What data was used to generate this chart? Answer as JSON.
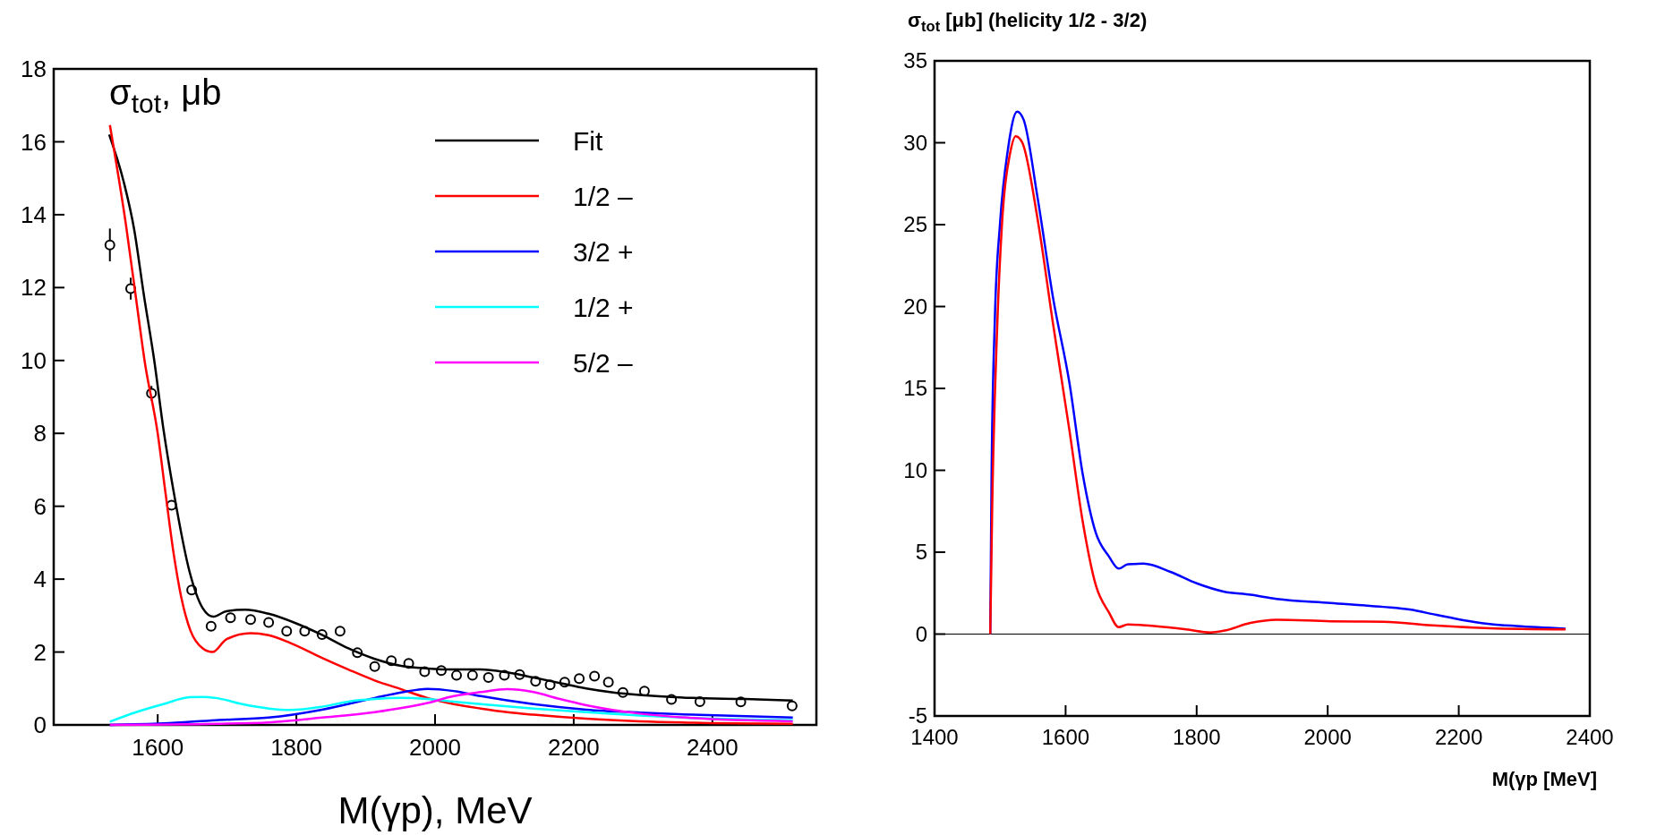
{
  "chart_data": [
    {
      "type": "line",
      "xlabel": "M(γp), MeV",
      "ylabel": "σ$_{tot}$, μb",
      "xlim": [
        1450,
        2550
      ],
      "ylim": [
        0,
        18
      ],
      "xticks": [
        1600,
        1800,
        2000,
        2200,
        2400
      ],
      "yticks": [
        0,
        2,
        4,
        6,
        8,
        10,
        12,
        14,
        16,
        18
      ],
      "grid": false,
      "legend": "top right",
      "series": [
        {
          "type": "scatter",
          "marker": "circle",
          "color": "#000000",
          "x": [
            1531,
            1561,
            1591,
            1620,
            1649,
            1677,
            1705,
            1734,
            1760,
            1786,
            1812,
            1837,
            1863,
            1888,
            1913,
            1937,
            1962,
            1985,
            2009,
            2031,
            2054,
            2077,
            2100,
            2122,
            2145,
            2166,
            2187,
            2208,
            2230,
            2250,
            2271,
            2302,
            2341,
            2382,
            2441,
            2515
          ],
          "values": [
            13.17,
            11.97,
            9.1,
            6.03,
            3.7,
            2.71,
            2.94,
            2.89,
            2.81,
            2.57,
            2.57,
            2.48,
            2.57,
            1.98,
            1.6,
            1.76,
            1.69,
            1.46,
            1.49,
            1.36,
            1.36,
            1.3,
            1.36,
            1.38,
            1.2,
            1.1,
            1.17,
            1.27,
            1.34,
            1.17,
            0.89,
            0.93,
            0.7,
            0.64,
            0.63,
            0.52
          ],
          "errors": [
            0.45,
            0.3,
            0.2,
            null,
            null,
            null,
            null,
            null,
            null,
            null,
            null,
            null,
            null,
            null,
            null,
            null,
            null,
            null,
            null,
            null,
            null,
            null,
            null,
            null,
            null,
            null,
            null,
            null,
            null,
            null,
            null,
            null,
            null,
            null,
            null,
            null
          ]
        },
        {
          "name": "Fit",
          "color": "#000000",
          "x": [
            1530,
            1551,
            1566,
            1580,
            1595,
            1608,
            1623,
            1646,
            1665,
            1680,
            1699,
            1726,
            1760,
            1798,
            1837,
            1875,
            1913,
            1951,
            1989,
            2027,
            2066,
            2104,
            2142,
            2180,
            2218,
            2257,
            2295,
            2371,
            2447,
            2516
          ],
          "values": [
            16.2,
            14.9,
            13.6,
            11.8,
            10.0,
            8.15,
            6.4,
            4.2,
            3.2,
            2.97,
            3.12,
            3.16,
            3.05,
            2.8,
            2.47,
            2.1,
            1.81,
            1.62,
            1.55,
            1.52,
            1.52,
            1.44,
            1.3,
            1.15,
            1.0,
            0.89,
            0.82,
            0.74,
            0.71,
            0.67
          ]
        },
        {
          "name": "1/2 –",
          "color": "#ff0000",
          "x": [
            1531,
            1554,
            1573,
            1581,
            1600,
            1611,
            1623,
            1634,
            1647,
            1665,
            1679,
            1699,
            1734,
            1760,
            1791,
            1837,
            1875,
            1913,
            1951,
            1989,
            2027,
            2066,
            2104,
            2142,
            2218,
            2295,
            2371,
            2516
          ],
          "values": [
            16.46,
            13.75,
            11.1,
            10.0,
            8.0,
            6.4,
            4.7,
            3.5,
            2.6,
            2.1,
            2.0,
            2.35,
            2.52,
            2.46,
            2.25,
            1.84,
            1.52,
            1.22,
            0.98,
            0.74,
            0.57,
            0.45,
            0.35,
            0.28,
            0.17,
            0.1,
            0.06,
            0.03
          ]
        },
        {
          "name": "3/2 +",
          "color": "#0000ff",
          "x": [
            1531,
            1608,
            1684,
            1760,
            1837,
            1913,
            1951,
            1989,
            2027,
            2066,
            2142,
            2218,
            2295,
            2371,
            2516
          ],
          "values": [
            0.0,
            0.04,
            0.13,
            0.2,
            0.42,
            0.74,
            0.89,
            0.99,
            0.93,
            0.79,
            0.57,
            0.42,
            0.34,
            0.28,
            0.2
          ]
        },
        {
          "name": "1/2 +",
          "color": "#00ffff",
          "x": [
            1531,
            1569,
            1608,
            1646,
            1665,
            1684,
            1722,
            1760,
            1791,
            1837,
            1875,
            1913,
            1951,
            1989,
            2027,
            2066,
            2142,
            2218,
            2295,
            2371,
            2516
          ],
          "values": [
            0.09,
            0.35,
            0.57,
            0.76,
            0.77,
            0.74,
            0.57,
            0.45,
            0.41,
            0.5,
            0.64,
            0.71,
            0.74,
            0.71,
            0.64,
            0.57,
            0.45,
            0.35,
            0.26,
            0.19,
            0.13
          ]
        },
        {
          "name": "5/2 –",
          "color": "#ff00ff",
          "x": [
            1531,
            1684,
            1760,
            1837,
            1913,
            1989,
            2027,
            2066,
            2104,
            2142,
            2180,
            2218,
            2295,
            2371,
            2516
          ],
          "values": [
            0.0,
            0.03,
            0.07,
            0.2,
            0.35,
            0.6,
            0.79,
            0.9,
            0.98,
            0.9,
            0.71,
            0.54,
            0.31,
            0.19,
            0.1
          ]
        }
      ]
    },
    {
      "type": "line",
      "xlabel": "M(γp [MeV]",
      "ylabel": "σ$_{tot}$ [μb] (helicity 1/2 - 3/2)",
      "xlim": [
        1400,
        2400
      ],
      "ylim": [
        -5,
        35
      ],
      "xticks": [
        1400,
        1600,
        1800,
        2000,
        2200,
        2400
      ],
      "yticks": [
        -5,
        0,
        5,
        10,
        15,
        20,
        25,
        30,
        35
      ],
      "grid": false,
      "legend": false,
      "ref_lines": [
        {
          "axis": "y",
          "value": 0,
          "color": "#000000"
        }
      ],
      "series": [
        {
          "color": "#0000ff",
          "x": [
            1485,
            1487,
            1492,
            1500,
            1512,
            1526,
            1536,
            1557,
            1581,
            1606,
            1626,
            1646,
            1666,
            1681,
            1695,
            1719,
            1760,
            1800,
            1841,
            1882,
            1922,
            2004,
            2085,
            2125,
            2166,
            2207,
            2247,
            2288,
            2363
          ],
          "values": [
            0,
            9.5,
            19.2,
            25.1,
            29.6,
            31.9,
            31.4,
            26.7,
            20.5,
            15.3,
            9.8,
            6.2,
            4.75,
            4.0,
            4.26,
            4.3,
            3.8,
            3.1,
            2.6,
            2.4,
            2.15,
            1.9,
            1.66,
            1.5,
            1.17,
            0.85,
            0.62,
            0.49,
            0.33
          ]
        },
        {
          "color": "#ff0000",
          "x": [
            1485,
            1488,
            1496,
            1504,
            1515,
            1524,
            1534,
            1557,
            1581,
            1606,
            1626,
            1646,
            1666,
            1681,
            1695,
            1735,
            1784,
            1821,
            1841,
            1882,
            1922,
            2004,
            2085,
            2166,
            2247,
            2363
          ],
          "values": [
            0,
            7.8,
            19.2,
            25.7,
            29.3,
            30.4,
            30.0,
            25.4,
            18.9,
            12.4,
            6.9,
            3.0,
            1.33,
            0.42,
            0.59,
            0.49,
            0.29,
            0.1,
            0.2,
            0.68,
            0.88,
            0.78,
            0.75,
            0.52,
            0.36,
            0.29
          ]
        }
      ]
    }
  ]
}
